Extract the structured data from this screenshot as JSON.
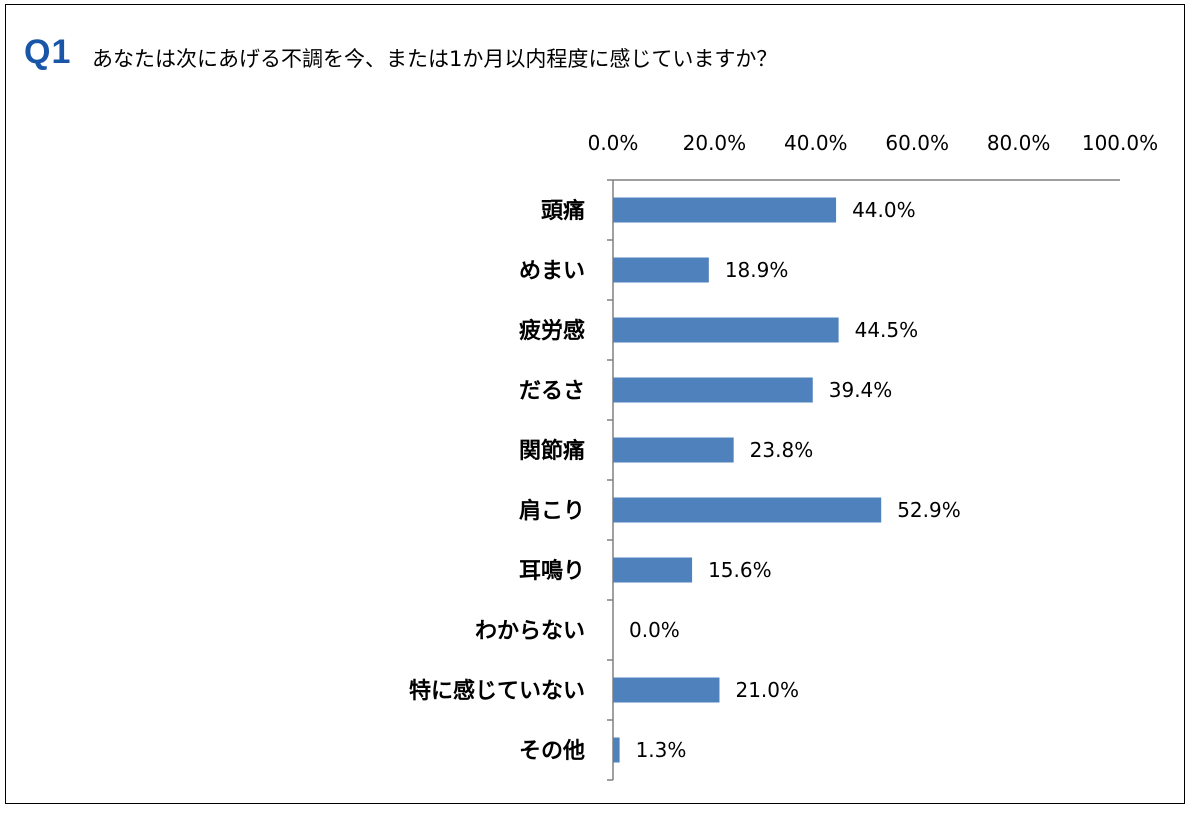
{
  "question": {
    "badge": "Q1",
    "text": "あなたは次にあげる不調を今、または1か月以内程度に感じていますか？"
  },
  "colors": {
    "bar": "#4f81bd",
    "axis": "#808080",
    "badge": "#1a56a8"
  },
  "chart_data": {
    "type": "bar",
    "orientation": "horizontal",
    "categories": [
      "頭痛",
      "めまい",
      "疲労感",
      "だるさ",
      "関節痛",
      "肩こり",
      "耳鳴り",
      "わからない",
      "特に感じていない",
      "その他"
    ],
    "values": [
      44.0,
      18.9,
      44.5,
      39.4,
      23.8,
      52.9,
      15.6,
      0.0,
      21.0,
      1.3
    ],
    "value_labels": [
      "44.0%",
      "18.9%",
      "44.5%",
      "39.4%",
      "23.8%",
      "52.9%",
      "15.6%",
      "0.0%",
      "21.0%",
      "1.3%"
    ],
    "xlim": [
      0,
      100
    ],
    "xticks": [
      0,
      20,
      40,
      60,
      80,
      100
    ],
    "xtick_labels": [
      "0.0%",
      "20.0%",
      "40.0%",
      "60.0%",
      "80.0%",
      "100.0%"
    ],
    "axis_position": "top",
    "grid": false,
    "legend": false
  }
}
